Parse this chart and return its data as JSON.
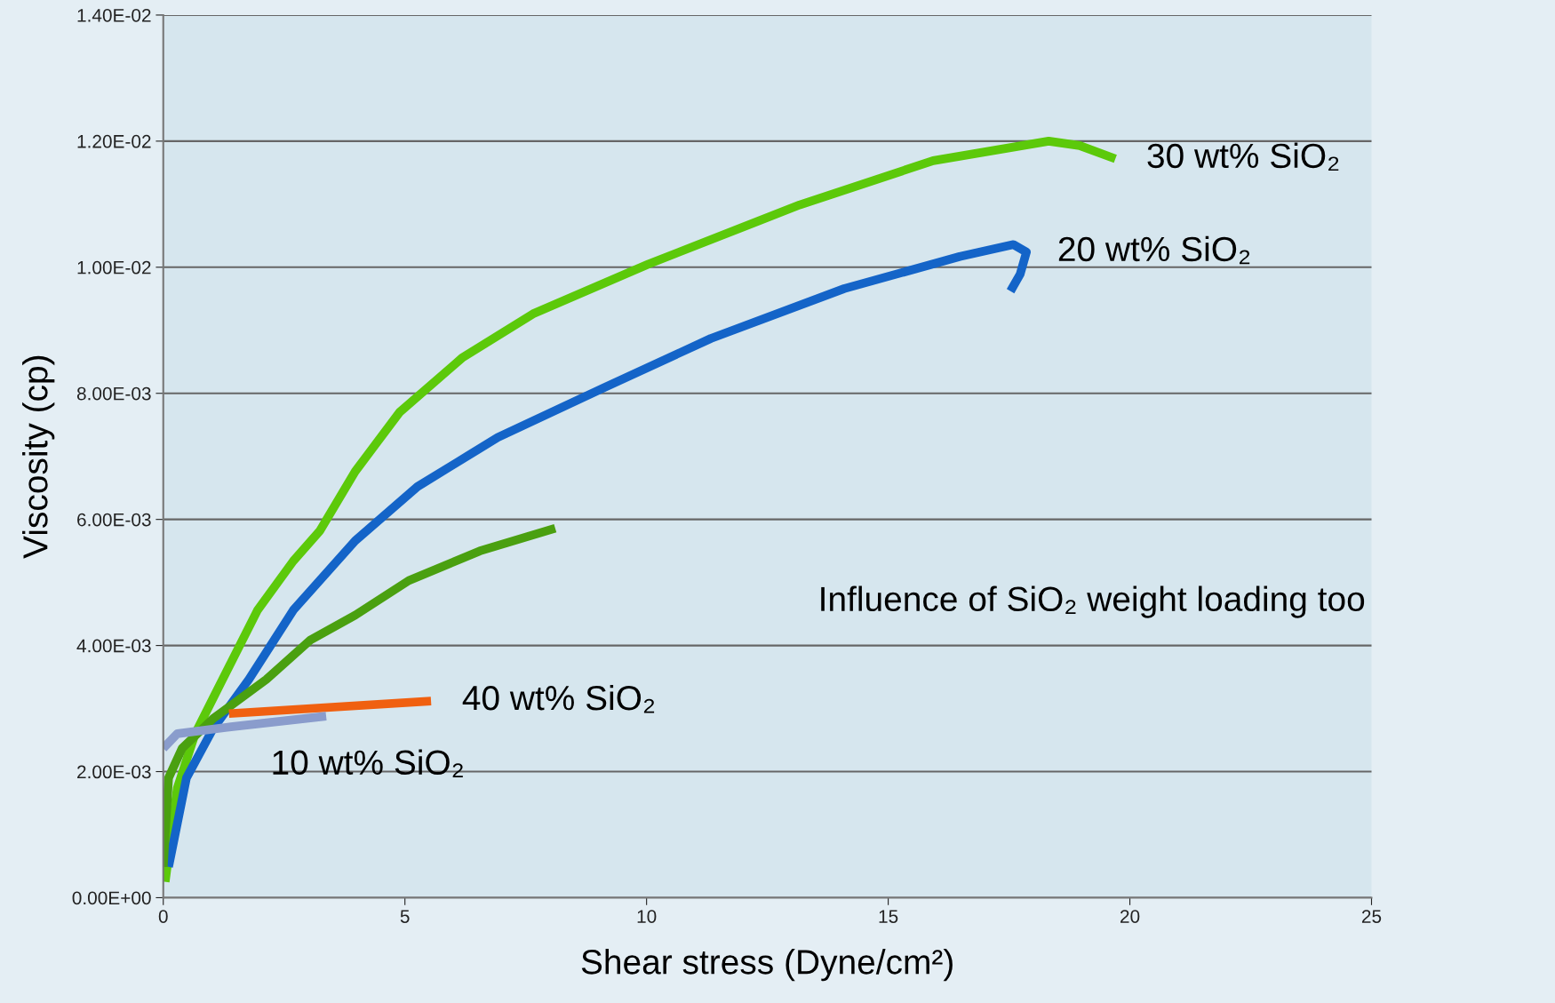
{
  "chart_data": {
    "type": "line",
    "xlabel": "Shear stress (Dyne/cm²)",
    "ylabel": "Viscosity (cp)",
    "xlim": [
      0,
      25
    ],
    "xticks": [
      0,
      5,
      10,
      15,
      20,
      25
    ],
    "ylim": [
      0,
      0.014
    ],
    "yticks": [
      {
        "value": 0,
        "label": "0.00E+00"
      },
      {
        "value": 0.002,
        "label": "2.00E-03"
      },
      {
        "value": 0.004,
        "label": "4.00E-03"
      },
      {
        "value": 0.006,
        "label": "6.00E-03"
      },
      {
        "value": 0.008,
        "label": "8.00E-03"
      },
      {
        "value": 0.01,
        "label": "1.00E-02"
      },
      {
        "value": 0.012,
        "label": "1.20E-02"
      },
      {
        "value": 0.014,
        "label": "1.40E-02"
      }
    ],
    "grid": "y",
    "legend": false,
    "marker": "none",
    "line_style": "solid",
    "series": [
      {
        "name": "30 wt% SiO₂",
        "color": "#5cc90a",
        "x": [
          0.04,
          0.29,
          0.66,
          1.12,
          1.95,
          2.69,
          3.24,
          3.97,
          4.89,
          6.18,
          7.65,
          10.04,
          13.17,
          15.93,
          18.32,
          18.96,
          19.7
        ],
        "values": [
          0.00025,
          0.00174,
          0.0026,
          0.0033,
          0.00456,
          0.00534,
          0.00582,
          0.00676,
          0.0077,
          0.00856,
          0.00926,
          0.01005,
          0.01099,
          0.01169,
          0.012,
          0.01193,
          0.01172
        ]
      },
      {
        "name": "20 wt% SiO₂",
        "color": "#1464c8",
        "x": [
          0.11,
          0.48,
          1.03,
          1.77,
          2.69,
          3.97,
          5.26,
          6.92,
          9.12,
          11.33,
          14.09,
          16.48,
          17.59,
          17.86,
          17.73,
          17.53
        ],
        "values": [
          0.00049,
          0.0019,
          0.00268,
          0.00346,
          0.00456,
          0.00566,
          0.00652,
          0.0073,
          0.00809,
          0.00887,
          0.00966,
          0.01017,
          0.01036,
          0.01024,
          0.00989,
          0.00962
        ]
      },
      {
        "color": "#4aa010",
        "x": [
          0,
          0.11,
          0.39,
          1.03,
          2.13,
          3.05,
          3.97,
          5.08,
          6.55,
          8.11
        ],
        "values": [
          0.00049,
          0.0019,
          0.00237,
          0.00284,
          0.00346,
          0.00409,
          0.00448,
          0.00503,
          0.0055,
          0.00586
        ]
      },
      {
        "name": "40 wt% SiO₂",
        "color": "#f06010",
        "x": [
          1.36,
          5.54
        ],
        "values": [
          0.00292,
          0.00312
        ]
      },
      {
        "name": "10 wt% SiO₂",
        "color": "#8a9ccc",
        "x": [
          0,
          0.29,
          1.4,
          3.37
        ],
        "values": [
          0.00237,
          0.0026,
          0.00271,
          0.00288
        ]
      }
    ],
    "annotations": [
      "Influence of SiO₂ weight loading too"
    ]
  }
}
